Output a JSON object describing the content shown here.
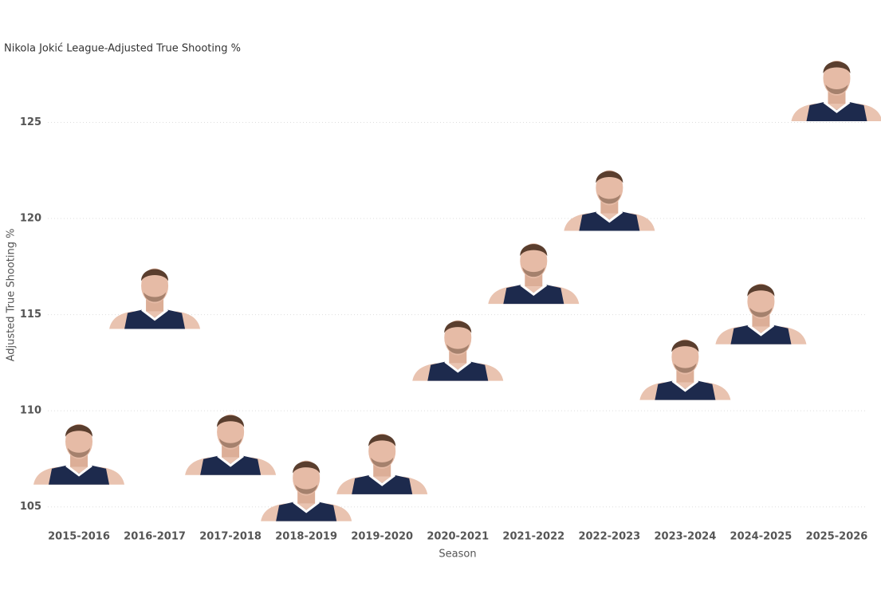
{
  "chart_data": {
    "type": "image-scatter",
    "title": "Nikola Jokić League-Adjusted True Shooting %",
    "x_label": "Season",
    "y_label": "Adjusted True Shooting %",
    "categories": [
      "2015-2016",
      "2016-2017",
      "2017-2018",
      "2018-2019",
      "2019-2020",
      "2020-2021",
      "2021-2022",
      "2022-2023",
      "2023-2024",
      "2024-2025",
      "2025-2026"
    ],
    "values": [
      107.9,
      116.0,
      108.4,
      106.0,
      107.4,
      113.3,
      117.3,
      121.1,
      112.3,
      115.2,
      126.8
    ],
    "color": "#1d2a4d",
    "ylim": [
      104.2,
      129
    ],
    "yticks": [
      105,
      110,
      115,
      120,
      125
    ],
    "grid": true
  }
}
